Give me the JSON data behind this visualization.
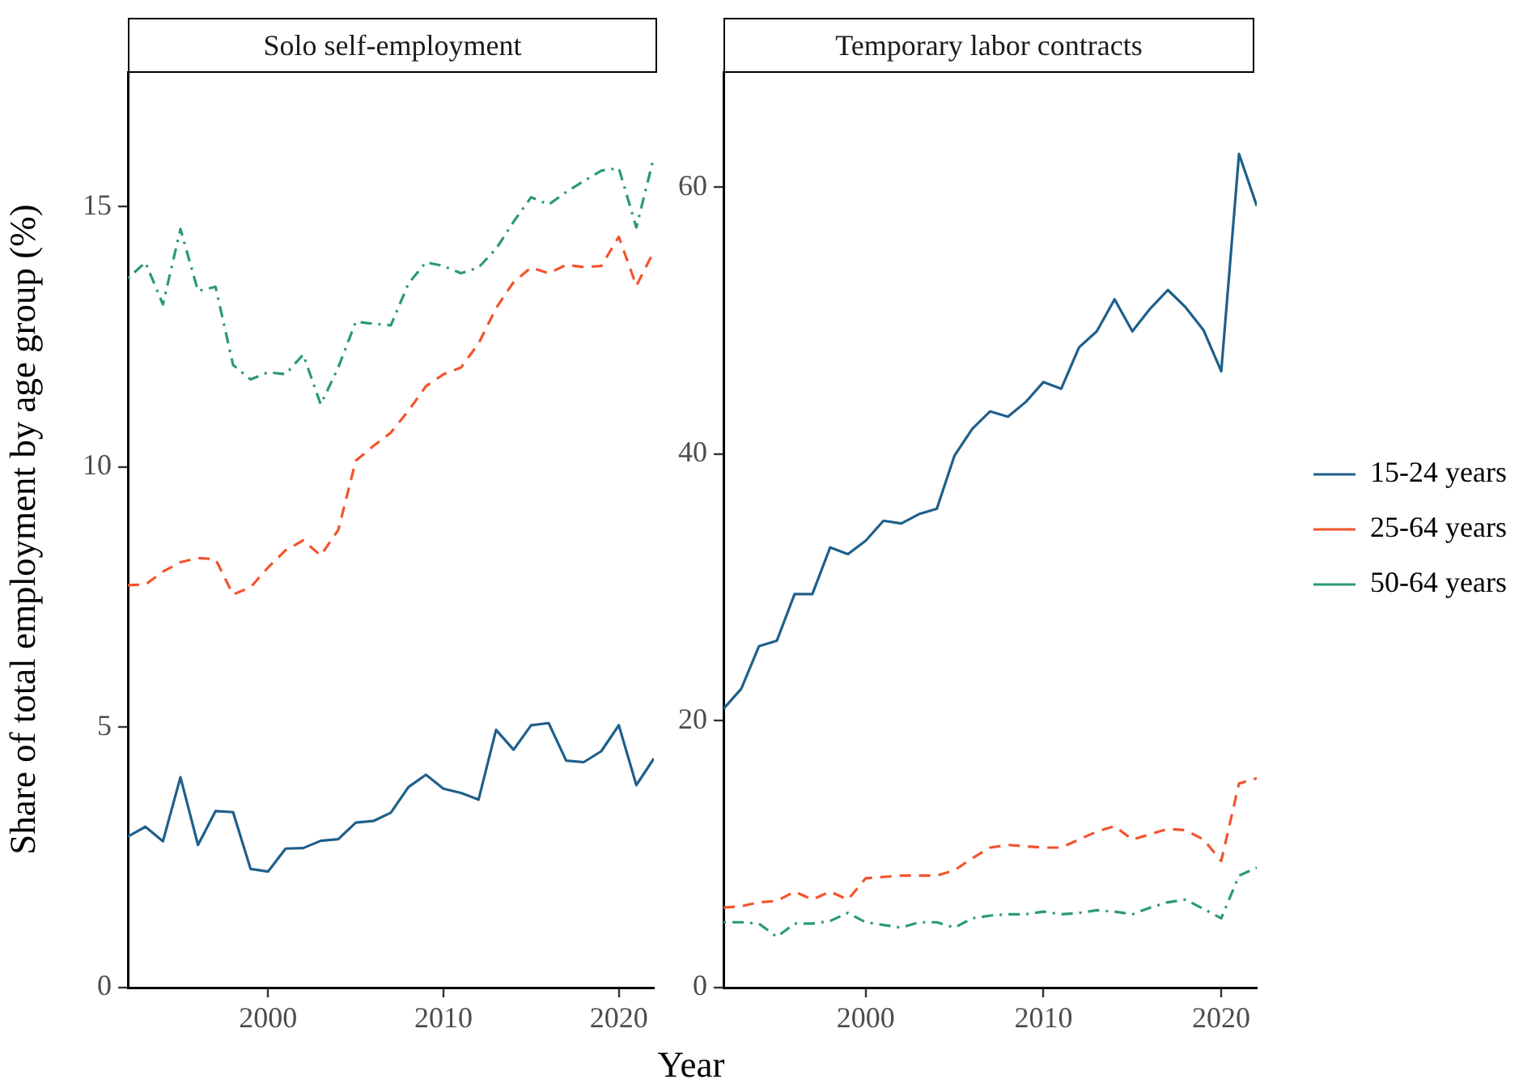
{
  "chart_data": [
    {
      "type": "line",
      "title": "Solo self-employment",
      "xlabel": "Year",
      "ylabel": "Share of total employment by age group (%)",
      "x": [
        1992,
        1993,
        1994,
        1995,
        1996,
        1997,
        1998,
        1999,
        2000,
        2001,
        2002,
        2003,
        2004,
        2005,
        2006,
        2007,
        2008,
        2009,
        2010,
        2011,
        2012,
        2013,
        2014,
        2015,
        2016,
        2017,
        2018,
        2019,
        2020,
        2021,
        2022
      ],
      "series": [
        {
          "color": "#1f5f8b",
          "line_style": "solid",
          "values": [
            2.9,
            3.09,
            2.81,
            4.04,
            2.74,
            3.39,
            3.37,
            2.28,
            2.23,
            2.67,
            2.68,
            2.82,
            2.85,
            3.17,
            3.2,
            3.36,
            3.85,
            4.09,
            3.82,
            3.74,
            3.61,
            4.95,
            4.57,
            5.04,
            5.08,
            4.36,
            4.33,
            4.54,
            5.04,
            3.89,
            4.4
          ]
        },
        {
          "color": "#f2542d",
          "line_style": "dashed",
          "values": [
            7.73,
            7.74,
            7.99,
            8.17,
            8.25,
            8.23,
            7.55,
            7.69,
            8.07,
            8.4,
            8.59,
            8.3,
            8.79,
            10.12,
            10.4,
            10.66,
            11.08,
            11.55,
            11.78,
            11.91,
            12.37,
            13.05,
            13.55,
            13.83,
            13.72,
            13.88,
            13.84,
            13.86,
            14.42,
            13.48,
            14.14
          ]
        },
        {
          "color": "#2a9a72",
          "line_style": "dashdot",
          "values": [
            13.62,
            13.93,
            13.12,
            14.57,
            13.38,
            13.46,
            11.96,
            11.68,
            11.82,
            11.78,
            12.16,
            11.2,
            11.91,
            12.79,
            12.75,
            12.72,
            13.52,
            13.93,
            13.86,
            13.72,
            13.83,
            14.19,
            14.71,
            15.18,
            15.04,
            15.28,
            15.49,
            15.69,
            15.74,
            14.6,
            15.95
          ]
        }
      ],
      "xlim": [
        1992,
        2022
      ],
      "xticks": [
        2000,
        2010,
        2020
      ],
      "ylim": [
        0,
        17.6
      ],
      "yticks": [
        0,
        5,
        10,
        15
      ]
    },
    {
      "type": "line",
      "title": "Temporary labor contracts",
      "x": [
        1992,
        1993,
        1994,
        1995,
        1996,
        1997,
        1998,
        1999,
        2000,
        2001,
        2002,
        2003,
        2004,
        2005,
        2006,
        2007,
        2008,
        2009,
        2010,
        2011,
        2012,
        2013,
        2014,
        2015,
        2016,
        2017,
        2018,
        2019,
        2020,
        2021,
        2022
      ],
      "series": [
        {
          "name": "15-24 years",
          "color": "#1f5f8b",
          "line_style": "solid",
          "values": [
            20.9,
            22.4,
            25.6,
            26.0,
            29.5,
            29.5,
            33.0,
            32.5,
            33.5,
            35.0,
            34.8,
            35.5,
            35.9,
            39.9,
            41.9,
            43.2,
            42.8,
            43.9,
            45.4,
            44.9,
            48.0,
            49.2,
            51.6,
            49.2,
            50.9,
            52.3,
            51.0,
            49.3,
            46.2,
            62.5,
            58.6
          ]
        },
        {
          "name": "25-64 years",
          "color": "#f2542d",
          "line_style": "dashed",
          "values": [
            6.0,
            6.1,
            6.4,
            6.5,
            7.2,
            6.6,
            7.2,
            6.6,
            8.2,
            8.3,
            8.4,
            8.4,
            8.4,
            8.8,
            9.7,
            10.5,
            10.7,
            10.6,
            10.5,
            10.5,
            11.1,
            11.7,
            12.1,
            11.1,
            11.5,
            11.9,
            11.8,
            11.1,
            9.5,
            15.3,
            15.7
          ]
        },
        {
          "name": "50-64 years",
          "color": "#2a9a72",
          "line_style": "dashdot",
          "values": [
            4.9,
            4.9,
            4.8,
            3.8,
            4.8,
            4.8,
            5.0,
            5.6,
            4.9,
            4.7,
            4.5,
            4.9,
            4.9,
            4.5,
            5.2,
            5.4,
            5.5,
            5.5,
            5.7,
            5.5,
            5.6,
            5.8,
            5.7,
            5.5,
            6.0,
            6.4,
            6.6,
            5.9,
            5.2,
            8.4,
            9.0
          ]
        }
      ],
      "xlim": [
        1992,
        2022
      ],
      "xticks": [
        2000,
        2010,
        2020
      ],
      "ylim": [
        0,
        68.7
      ],
      "yticks": [
        0,
        20,
        40,
        60
      ],
      "legend": "right"
    }
  ]
}
